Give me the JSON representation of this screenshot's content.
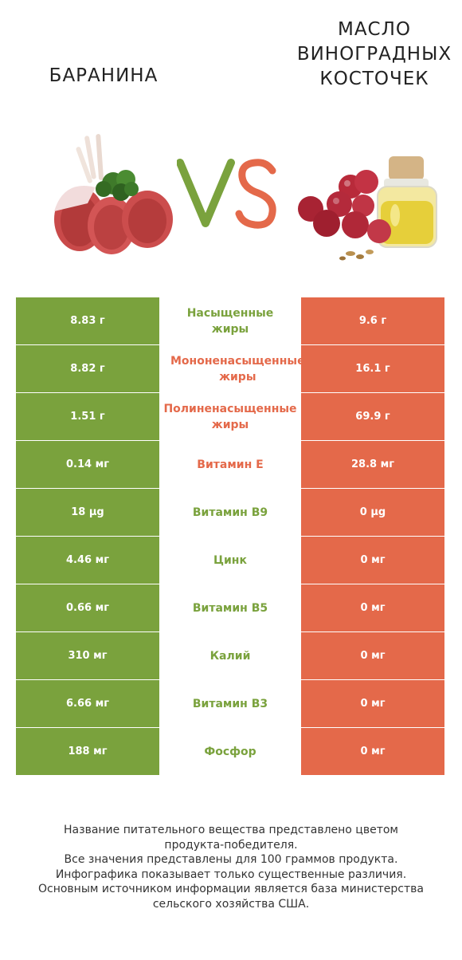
{
  "header": {
    "left_title": "БАРАНИНА",
    "right_title_lines": [
      "МАСЛО",
      "ВИНОГРАДНЫХ",
      "КОСТОЧЕК"
    ],
    "vs_text": "VS"
  },
  "colors": {
    "winner_left": "#7aa23d",
    "winner_right": "#e4694a"
  },
  "rows": [
    {
      "left": "8.83 г",
      "nutrient_lines": [
        "Насыщенные",
        "жиры"
      ],
      "right": "9.6 г",
      "winner": "left"
    },
    {
      "left": "8.82 г",
      "nutrient_lines": [
        "Мононенасыщенные",
        "жиры"
      ],
      "right": "16.1 г",
      "winner": "right"
    },
    {
      "left": "1.51 г",
      "nutrient_lines": [
        "Полиненасыщенные",
        "жиры"
      ],
      "right": "69.9 г",
      "winner": "right"
    },
    {
      "left": "0.14 мг",
      "nutrient_lines": [
        "Витамин E"
      ],
      "right": "28.8 мг",
      "winner": "right"
    },
    {
      "left": "18 µg",
      "nutrient_lines": [
        "Витамин B9"
      ],
      "right": "0 µg",
      "winner": "left"
    },
    {
      "left": "4.46 мг",
      "nutrient_lines": [
        "Цинк"
      ],
      "right": "0 мг",
      "winner": "left"
    },
    {
      "left": "0.66 мг",
      "nutrient_lines": [
        "Витамин B5"
      ],
      "right": "0 мг",
      "winner": "left"
    },
    {
      "left": "310 мг",
      "nutrient_lines": [
        "Калий"
      ],
      "right": "0 мг",
      "winner": "left"
    },
    {
      "left": "6.66 мг",
      "nutrient_lines": [
        "Витамин B3"
      ],
      "right": "0 мг",
      "winner": "left"
    },
    {
      "left": "188 мг",
      "nutrient_lines": [
        "Фосфор"
      ],
      "right": "0 мг",
      "winner": "left"
    }
  ],
  "footer": {
    "lines": [
      "Название питательного вещества представлено цветом",
      "продукта-победителя.",
      "Все значения представлены для 100 граммов продукта.",
      "Инфографика показывает только существенные различия.",
      "Основным источником информации является база министерства",
      "сельского хозяйства США."
    ]
  }
}
